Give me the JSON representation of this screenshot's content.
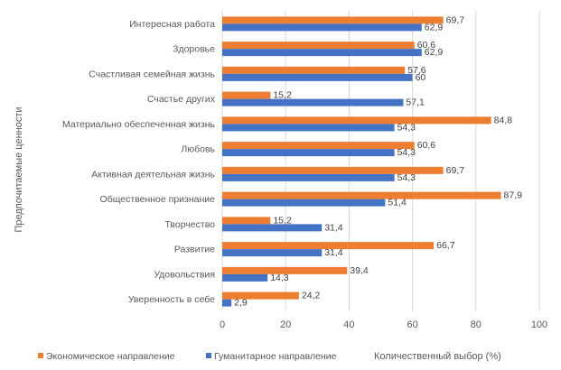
{
  "chart_data": {
    "type": "bar",
    "orientation": "horizontal",
    "categories": [
      "Интересная работа",
      "Здоровье",
      "Счастливая семейная жизнь",
      "Счастье других",
      "Материально обеспеченная жизнь",
      "Любовь",
      "Активная деятельная жизнь",
      "Общественное признание",
      "Творчество",
      "Развитие",
      "Удовольствия",
      "Уверенность в себе"
    ],
    "series": [
      {
        "name": "Экономическое направление",
        "color": "#ed7d31",
        "values": [
          69.7,
          60.6,
          57.6,
          15.2,
          84.8,
          60.6,
          69.7,
          87.9,
          15.2,
          66.7,
          39.4,
          24.2
        ],
        "labels": [
          "69,7",
          "60,6",
          "57,6",
          "15,2",
          "84,8",
          "60,6",
          "69,7",
          "87,9",
          "15,2",
          "66,7",
          "39,4",
          "24,2"
        ]
      },
      {
        "name": "Гуманитарное направление",
        "color": "#4472c4",
        "values": [
          62.9,
          62.9,
          60,
          57.1,
          54.3,
          54.3,
          54.3,
          51.4,
          31.4,
          31.4,
          14.3,
          2.9
        ],
        "labels": [
          "62,9",
          "62,9",
          "60",
          "57,1",
          "54,3",
          "54,3",
          "54,3",
          "51,4",
          "31,4",
          "31,4",
          "14,3",
          "2,9"
        ]
      }
    ],
    "xlabel": "Количественный выбор (%)",
    "ylabel": "Предпочитаемые ценности",
    "xlim": [
      0,
      100
    ],
    "xticks": [
      0,
      20,
      40,
      60,
      80,
      100
    ],
    "grid": true,
    "legend_position": "bottom-left"
  }
}
